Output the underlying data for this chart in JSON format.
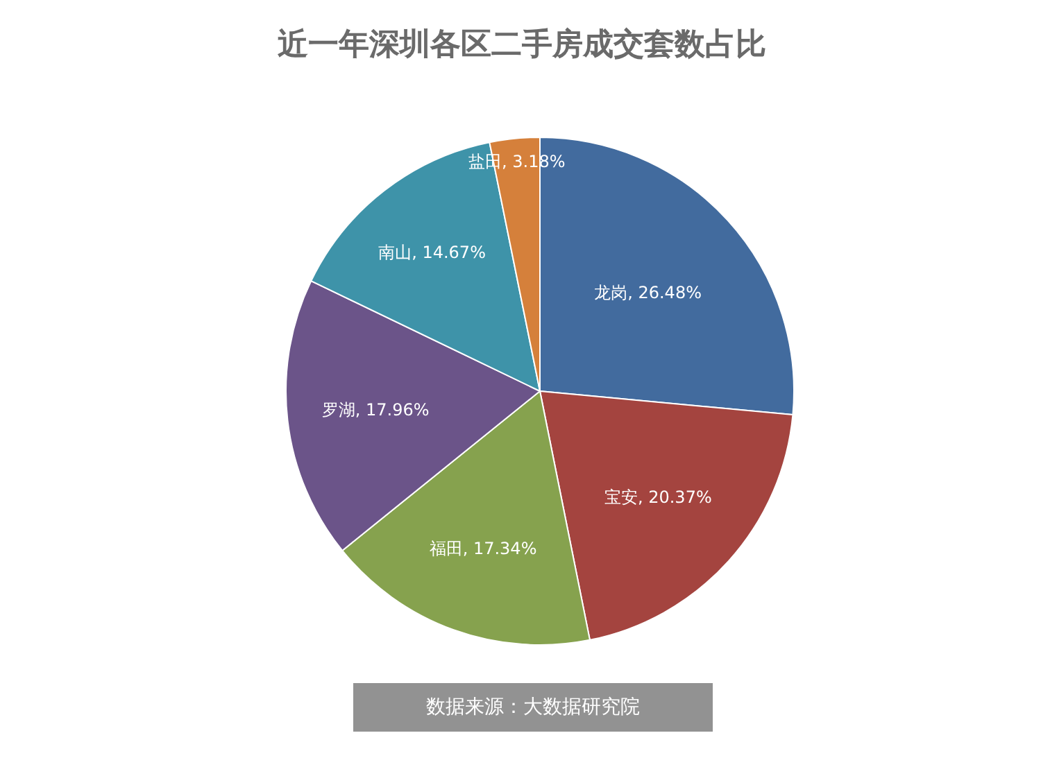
{
  "chart_data": {
    "type": "pie",
    "title": "近一年深圳各区二手房成交套数占比",
    "categories": [
      "龙岗",
      "宝安",
      "福田",
      "罗湖",
      "南山",
      "盐田"
    ],
    "values": [
      26.48,
      20.37,
      17.34,
      17.96,
      14.67,
      3.18
    ],
    "colors": [
      "#426b9e",
      "#a4443f",
      "#86a24e",
      "#6b5489",
      "#3e93a9",
      "#d5803b"
    ],
    "value_labels": [
      "26.48%",
      "20.37%",
      "17.34%",
      "17.96%",
      "14.67%",
      "3.18%"
    ],
    "annotations": [
      "数据来源：大数据研究院"
    ]
  }
}
